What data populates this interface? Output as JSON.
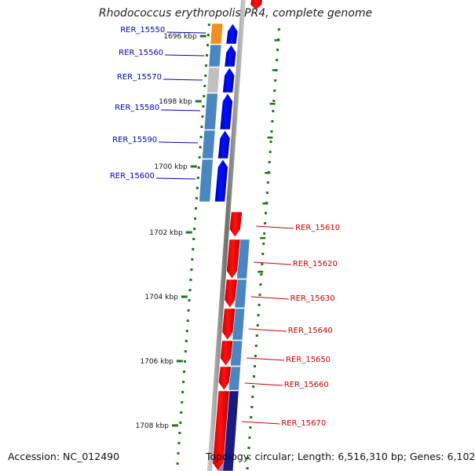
{
  "header": {
    "title": "Rhodococcus erythropolis PR4, complete genome"
  },
  "footer": {
    "accession": "Accession: NC_012490",
    "summary": "Topology: circular; Length: 6,516,310 bp; Genes: 6,102"
  },
  "ruler": {
    "ticks": [
      "1696 kbp",
      "1698 kbp",
      "1700 kbp",
      "1702 kbp",
      "1704 kbp",
      "1706 kbp",
      "1708 kbp"
    ]
  },
  "genes_forward": [
    {
      "label": "RER_15550",
      "cog_color": "#f2901e"
    },
    {
      "label": "RER_15560",
      "cog_color": "#4a86c0"
    },
    {
      "label": "RER_15570",
      "cog_color": "#c0c0c0"
    },
    {
      "label": "RER_15580",
      "cog_color": "#4a86c0"
    },
    {
      "label": "RER_15590",
      "cog_color": "#4a86c0"
    },
    {
      "label": "RER_15600",
      "cog_color": "#4a86c0"
    }
  ],
  "genes_reverse": [
    {
      "label": "RER_15610",
      "cog_color": "#ffffff"
    },
    {
      "label": "RER_15620",
      "cog_color": "#4a86c0"
    },
    {
      "label": "RER_15630",
      "cog_color": "#4a86c0"
    },
    {
      "label": "RER_15640",
      "cog_color": "#4a86c0"
    },
    {
      "label": "RER_15650",
      "cog_color": "#4a86c0"
    },
    {
      "label": "RER_15660",
      "cog_color": "#4a86c0"
    },
    {
      "label": "RER_15670",
      "cog_color": "#1a1a80"
    }
  ],
  "colors": {
    "forward_strand": "#0000ee",
    "reverse_strand": "#ee0000",
    "forward_label": "#0000bb",
    "reverse_label": "#cc0000",
    "backbone": "#888888",
    "tick": "#1a7a1a"
  }
}
